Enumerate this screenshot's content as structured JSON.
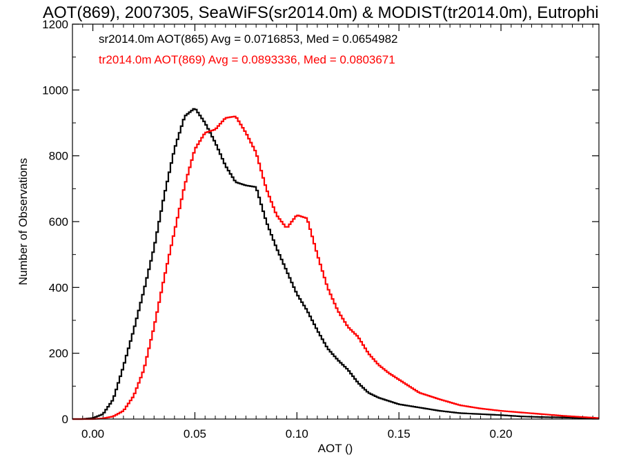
{
  "chart_data": {
    "type": "line",
    "title": "AOT(869), 2007305, SeaWiFS(sr2014.0m) & MODIST(tr2014.0m), Eutrophi",
    "xlabel": "AOT ()",
    "ylabel": "Number of Observations",
    "xlim": [
      -0.01,
      0.248
    ],
    "ylim": [
      0,
      1200
    ],
    "xticks": [
      0.0,
      0.05,
      0.1,
      0.15,
      0.2
    ],
    "xtick_labels": [
      "0.00",
      "0.05",
      "0.10",
      "0.15",
      "0.20"
    ],
    "yticks": [
      0,
      200,
      400,
      600,
      800,
      1000,
      1200
    ],
    "ytick_labels": [
      "0",
      "200",
      "400",
      "600",
      "800",
      "1000",
      "1200"
    ],
    "grid": false,
    "legend_position": "top-left",
    "annotations": [
      {
        "text": "sr2014.0m AOT(865) Avg = 0.0716853, Med = 0.0654982",
        "color": "#000000"
      },
      {
        "text": "tr2014.0m AOT(869) Avg = 0.0893336, Med = 0.0803671",
        "color": "#ff0000"
      }
    ],
    "series": [
      {
        "color": "#000000",
        "step": 0.001,
        "x": [
          -0.01,
          -0.005,
          0.0,
          0.005,
          0.01,
          0.015,
          0.02,
          0.025,
          0.03,
          0.035,
          0.04,
          0.045,
          0.05,
          0.055,
          0.06,
          0.065,
          0.07,
          0.075,
          0.08,
          0.085,
          0.09,
          0.095,
          0.1,
          0.105,
          0.11,
          0.115,
          0.12,
          0.125,
          0.13,
          0.135,
          0.14,
          0.145,
          0.15,
          0.155,
          0.16,
          0.17,
          0.18,
          0.19,
          0.2,
          0.21,
          0.22,
          0.23,
          0.24,
          0.248
        ],
        "values": [
          0,
          0,
          3,
          15,
          60,
          160,
          270,
          390,
          520,
          680,
          820,
          920,
          945,
          900,
          840,
          770,
          720,
          710,
          705,
          600,
          520,
          450,
          380,
          330,
          270,
          215,
          180,
          150,
          110,
          80,
          65,
          55,
          45,
          40,
          35,
          25,
          18,
          15,
          12,
          8,
          6,
          5,
          3,
          2
        ]
      },
      {
        "color": "#ff0000",
        "step": 0.001,
        "x": [
          -0.01,
          0.0,
          0.005,
          0.01,
          0.015,
          0.02,
          0.025,
          0.03,
          0.035,
          0.04,
          0.045,
          0.05,
          0.055,
          0.06,
          0.065,
          0.07,
          0.075,
          0.08,
          0.085,
          0.09,
          0.095,
          0.1,
          0.105,
          0.11,
          0.115,
          0.12,
          0.125,
          0.13,
          0.135,
          0.14,
          0.145,
          0.15,
          0.155,
          0.16,
          0.17,
          0.18,
          0.19,
          0.2,
          0.21,
          0.22,
          0.23,
          0.24,
          0.248
        ],
        "values": [
          0,
          0,
          2,
          8,
          25,
          70,
          150,
          280,
          430,
          570,
          710,
          820,
          870,
          880,
          915,
          920,
          870,
          810,
          700,
          620,
          580,
          620,
          610,
          500,
          400,
          330,
          280,
          250,
          200,
          165,
          140,
          120,
          100,
          80,
          60,
          42,
          32,
          25,
          20,
          15,
          10,
          6,
          3
        ]
      }
    ]
  }
}
